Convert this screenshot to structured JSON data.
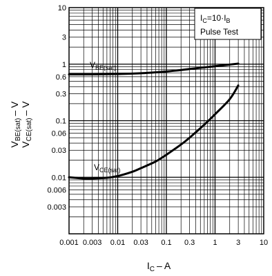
{
  "chart_data": {
    "type": "line",
    "title": "",
    "xlabel": "I_C – A",
    "xlabel_main": "I",
    "xlabel_sub": "C",
    "xlabel_rest": "– A",
    "ylabel_lines": [
      {
        "main": "V",
        "sub": "BE(sat)",
        "rest": "– V"
      },
      {
        "main": "V",
        "sub": "CE(sat)",
        "rest": "– V"
      }
    ],
    "x_scale": "log",
    "y_scale": "log",
    "xlim": [
      0.001,
      10
    ],
    "ylim": [
      0.001,
      10
    ],
    "grid": true,
    "x_ticks": [
      {
        "value": 0.001,
        "label": "0.001"
      },
      {
        "value": 0.003,
        "label": "0.003"
      },
      {
        "value": 0.01,
        "label": "0.01"
      },
      {
        "value": 0.03,
        "label": "0.03"
      },
      {
        "value": 0.1,
        "label": "0.1"
      },
      {
        "value": 0.3,
        "label": "0.3"
      },
      {
        "value": 1,
        "label": "1"
      },
      {
        "value": 3,
        "label": "3"
      },
      {
        "value": 10,
        "label": "10"
      }
    ],
    "y_ticks": [
      {
        "value": 10,
        "label": "10"
      },
      {
        "value": 3,
        "label": "3"
      },
      {
        "value": 1,
        "label": "1"
      },
      {
        "value": 0.6,
        "label": "0.6"
      },
      {
        "value": 0.3,
        "label": "0.3"
      },
      {
        "value": 0.1,
        "label": "0.1"
      },
      {
        "value": 0.06,
        "label": "0.06"
      },
      {
        "value": 0.03,
        "label": "0.03"
      },
      {
        "value": 0.01,
        "label": "0.01"
      },
      {
        "value": 0.006,
        "label": "0.006"
      },
      {
        "value": 0.003,
        "label": "0.003"
      }
    ],
    "series": [
      {
        "name": "V_BE(sat)",
        "label_main": "V",
        "label_sub": "BE(sat)",
        "x": [
          0.001,
          0.003,
          0.01,
          0.03,
          0.1,
          0.3,
          1,
          3
        ],
        "y": [
          0.66,
          0.66,
          0.67,
          0.69,
          0.74,
          0.82,
          0.92,
          1.02
        ]
      },
      {
        "name": "V_CE(sat)",
        "label_main": "V",
        "label_sub": "CE(sat)",
        "x": [
          0.001,
          0.002,
          0.003,
          0.006,
          0.01,
          0.02,
          0.03,
          0.06,
          0.1,
          0.2,
          0.3,
          0.6,
          1,
          2,
          3
        ],
        "y": [
          0.01,
          0.0095,
          0.0095,
          0.0098,
          0.0105,
          0.0125,
          0.0145,
          0.019,
          0.025,
          0.038,
          0.05,
          0.085,
          0.13,
          0.24,
          0.42
        ]
      }
    ],
    "annotation": {
      "line1_main": "I",
      "line1_sub": "C",
      "line1_mid": "=10·I",
      "line1_sub2": "B",
      "line2": "Pulse Test"
    }
  }
}
